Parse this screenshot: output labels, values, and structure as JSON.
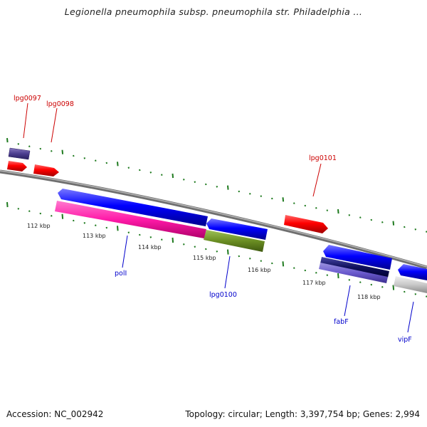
{
  "header": {
    "title": "Legionella pneumophila subsp. pneumophila str. Philadelphia ..."
  },
  "footer": {
    "accession": "Accession: NC_002942",
    "summary": "Topology: circular; Length: 3,397,754 bp; Genes: 2,994"
  },
  "colors": {
    "backbone": "#8a8a8a",
    "tick": "#1e7a1e",
    "red_gene": "#ff0000",
    "blue_gene": "#0000ff",
    "label_red": "#cc0000",
    "label_blue": "#0000cc"
  },
  "scale_labels": [
    "112 kbp",
    "113 kbp",
    "114 kbp",
    "115 kbp",
    "116 kbp",
    "117 kbp",
    "118 kbp"
  ],
  "gene_labels": {
    "lpg0097": "lpg0097",
    "lpg0098": "lpg0098",
    "lpg0101": "lpg0101",
    "polI": "polI",
    "lpg0100": "lpg0100",
    "fabF": "fabF",
    "vipF": "vipF"
  }
}
